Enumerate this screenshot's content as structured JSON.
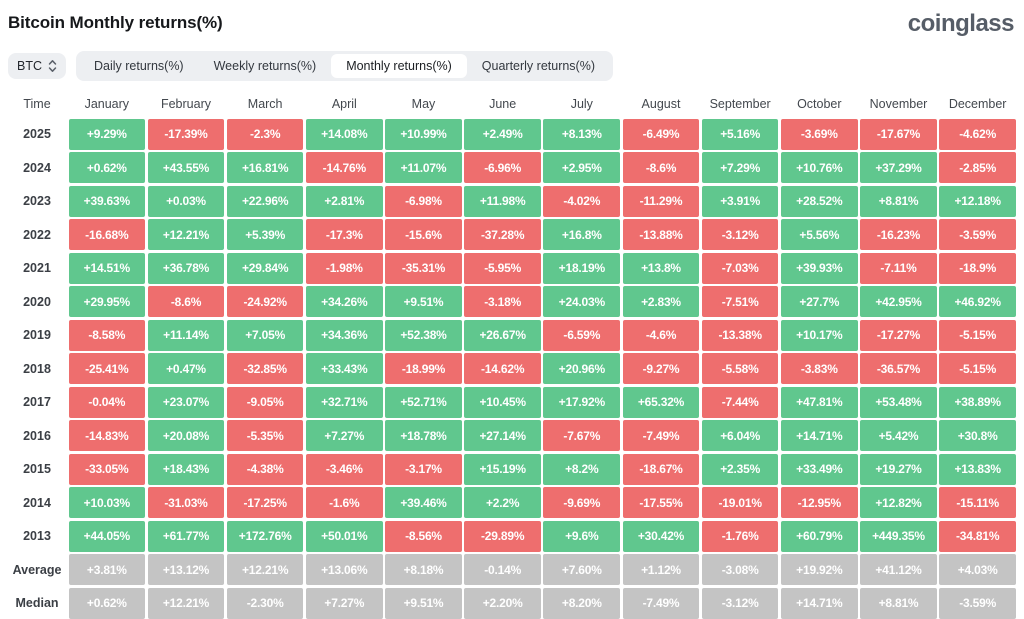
{
  "page": {
    "title": "Bitcoin Monthly returns(%)",
    "brand": "coinglass"
  },
  "toolbar": {
    "symbol_select": {
      "value": "BTC"
    },
    "tabs": [
      {
        "label": "Daily returns(%)",
        "active": false
      },
      {
        "label": "Weekly returns(%)",
        "active": false
      },
      {
        "label": "Monthly returns(%)",
        "active": true
      },
      {
        "label": "Quarterly returns(%)",
        "active": false
      }
    ]
  },
  "colors": {
    "positive": "#60C78E",
    "negative": "#EE6E6E",
    "neutral": "#C4C4C4"
  },
  "table": {
    "columns": [
      "Time",
      "January",
      "February",
      "March",
      "April",
      "May",
      "June",
      "July",
      "August",
      "September",
      "October",
      "November",
      "December"
    ],
    "rows": [
      {
        "label": "2025",
        "summary": false,
        "cells": [
          "+9.29%",
          "-17.39%",
          "-2.3%",
          "+14.08%",
          "+10.99%",
          "+2.49%",
          "+8.13%",
          "-6.49%",
          "+5.16%",
          "-3.69%",
          "-17.67%",
          "-4.62%"
        ]
      },
      {
        "label": "2024",
        "summary": false,
        "cells": [
          "+0.62%",
          "+43.55%",
          "+16.81%",
          "-14.76%",
          "+11.07%",
          "-6.96%",
          "+2.95%",
          "-8.6%",
          "+7.29%",
          "+10.76%",
          "+37.29%",
          "-2.85%"
        ]
      },
      {
        "label": "2023",
        "summary": false,
        "cells": [
          "+39.63%",
          "+0.03%",
          "+22.96%",
          "+2.81%",
          "-6.98%",
          "+11.98%",
          "-4.02%",
          "-11.29%",
          "+3.91%",
          "+28.52%",
          "+8.81%",
          "+12.18%"
        ]
      },
      {
        "label": "2022",
        "summary": false,
        "cells": [
          "-16.68%",
          "+12.21%",
          "+5.39%",
          "-17.3%",
          "-15.6%",
          "-37.28%",
          "+16.8%",
          "-13.88%",
          "-3.12%",
          "+5.56%",
          "-16.23%",
          "-3.59%"
        ]
      },
      {
        "label": "2021",
        "summary": false,
        "cells": [
          "+14.51%",
          "+36.78%",
          "+29.84%",
          "-1.98%",
          "-35.31%",
          "-5.95%",
          "+18.19%",
          "+13.8%",
          "-7.03%",
          "+39.93%",
          "-7.11%",
          "-18.9%"
        ]
      },
      {
        "label": "2020",
        "summary": false,
        "cells": [
          "+29.95%",
          "-8.6%",
          "-24.92%",
          "+34.26%",
          "+9.51%",
          "-3.18%",
          "+24.03%",
          "+2.83%",
          "-7.51%",
          "+27.7%",
          "+42.95%",
          "+46.92%"
        ]
      },
      {
        "label": "2019",
        "summary": false,
        "cells": [
          "-8.58%",
          "+11.14%",
          "+7.05%",
          "+34.36%",
          "+52.38%",
          "+26.67%",
          "-6.59%",
          "-4.6%",
          "-13.38%",
          "+10.17%",
          "-17.27%",
          "-5.15%"
        ]
      },
      {
        "label": "2018",
        "summary": false,
        "cells": [
          "-25.41%",
          "+0.47%",
          "-32.85%",
          "+33.43%",
          "-18.99%",
          "-14.62%",
          "+20.96%",
          "-9.27%",
          "-5.58%",
          "-3.83%",
          "-36.57%",
          "-5.15%"
        ]
      },
      {
        "label": "2017",
        "summary": false,
        "cells": [
          "-0.04%",
          "+23.07%",
          "-9.05%",
          "+32.71%",
          "+52.71%",
          "+10.45%",
          "+17.92%",
          "+65.32%",
          "-7.44%",
          "+47.81%",
          "+53.48%",
          "+38.89%"
        ]
      },
      {
        "label": "2016",
        "summary": false,
        "cells": [
          "-14.83%",
          "+20.08%",
          "-5.35%",
          "+7.27%",
          "+18.78%",
          "+27.14%",
          "-7.67%",
          "-7.49%",
          "+6.04%",
          "+14.71%",
          "+5.42%",
          "+30.8%"
        ]
      },
      {
        "label": "2015",
        "summary": false,
        "cells": [
          "-33.05%",
          "+18.43%",
          "-4.38%",
          "-3.46%",
          "-3.17%",
          "+15.19%",
          "+8.2%",
          "-18.67%",
          "+2.35%",
          "+33.49%",
          "+19.27%",
          "+13.83%"
        ]
      },
      {
        "label": "2014",
        "summary": false,
        "cells": [
          "+10.03%",
          "-31.03%",
          "-17.25%",
          "-1.6%",
          "+39.46%",
          "+2.2%",
          "-9.69%",
          "-17.55%",
          "-19.01%",
          "-12.95%",
          "+12.82%",
          "-15.11%"
        ]
      },
      {
        "label": "2013",
        "summary": false,
        "cells": [
          "+44.05%",
          "+61.77%",
          "+172.76%",
          "+50.01%",
          "-8.56%",
          "-29.89%",
          "+9.6%",
          "+30.42%",
          "-1.76%",
          "+60.79%",
          "+449.35%",
          "-34.81%"
        ]
      },
      {
        "label": "Average",
        "summary": true,
        "cells": [
          "+3.81%",
          "+13.12%",
          "+12.21%",
          "+13.06%",
          "+8.18%",
          "-0.14%",
          "+7.60%",
          "+1.12%",
          "-3.08%",
          "+19.92%",
          "+41.12%",
          "+4.03%"
        ]
      },
      {
        "label": "Median",
        "summary": true,
        "cells": [
          "+0.62%",
          "+12.21%",
          "-2.30%",
          "+7.27%",
          "+9.51%",
          "+2.20%",
          "+8.20%",
          "-7.49%",
          "-3.12%",
          "+14.71%",
          "+8.81%",
          "-3.59%"
        ]
      }
    ]
  },
  "chart_data": {
    "type": "heatmap",
    "title": "Bitcoin Monthly returns(%)",
    "unit": "%",
    "x_labels": [
      "January",
      "February",
      "March",
      "April",
      "May",
      "June",
      "July",
      "August",
      "September",
      "October",
      "November",
      "December"
    ],
    "y_labels": [
      "2025",
      "2024",
      "2023",
      "2022",
      "2021",
      "2020",
      "2019",
      "2018",
      "2017",
      "2016",
      "2015",
      "2014",
      "2013",
      "Average",
      "Median"
    ],
    "series": [
      {
        "name": "2025",
        "values": [
          9.29,
          -17.39,
          -2.3,
          14.08,
          10.99,
          2.49,
          8.13,
          -6.49,
          5.16,
          -3.69,
          -17.67,
          -4.62
        ]
      },
      {
        "name": "2024",
        "values": [
          0.62,
          43.55,
          16.81,
          -14.76,
          11.07,
          -6.96,
          2.95,
          -8.6,
          7.29,
          10.76,
          37.29,
          -2.85
        ]
      },
      {
        "name": "2023",
        "values": [
          39.63,
          0.03,
          22.96,
          2.81,
          -6.98,
          11.98,
          -4.02,
          -11.29,
          3.91,
          28.52,
          8.81,
          12.18
        ]
      },
      {
        "name": "2022",
        "values": [
          -16.68,
          12.21,
          5.39,
          -17.3,
          -15.6,
          -37.28,
          16.8,
          -13.88,
          -3.12,
          5.56,
          -16.23,
          -3.59
        ]
      },
      {
        "name": "2021",
        "values": [
          14.51,
          36.78,
          29.84,
          -1.98,
          -35.31,
          -5.95,
          18.19,
          13.8,
          -7.03,
          39.93,
          -7.11,
          -18.9
        ]
      },
      {
        "name": "2020",
        "values": [
          29.95,
          -8.6,
          -24.92,
          34.26,
          9.51,
          -3.18,
          24.03,
          2.83,
          -7.51,
          27.7,
          42.95,
          46.92
        ]
      },
      {
        "name": "2019",
        "values": [
          -8.58,
          11.14,
          7.05,
          34.36,
          52.38,
          26.67,
          -6.59,
          -4.6,
          -13.38,
          10.17,
          -17.27,
          -5.15
        ]
      },
      {
        "name": "2018",
        "values": [
          -25.41,
          0.47,
          -32.85,
          33.43,
          -18.99,
          -14.62,
          20.96,
          -9.27,
          -5.58,
          -3.83,
          -36.57,
          -5.15
        ]
      },
      {
        "name": "2017",
        "values": [
          -0.04,
          23.07,
          -9.05,
          32.71,
          52.71,
          10.45,
          17.92,
          65.32,
          -7.44,
          47.81,
          53.48,
          38.89
        ]
      },
      {
        "name": "2016",
        "values": [
          -14.83,
          20.08,
          -5.35,
          7.27,
          18.78,
          27.14,
          -7.67,
          -7.49,
          6.04,
          14.71,
          5.42,
          30.8
        ]
      },
      {
        "name": "2015",
        "values": [
          -33.05,
          18.43,
          -4.38,
          -3.46,
          -3.17,
          15.19,
          8.2,
          -18.67,
          2.35,
          33.49,
          19.27,
          13.83
        ]
      },
      {
        "name": "2014",
        "values": [
          10.03,
          -31.03,
          -17.25,
          -1.6,
          39.46,
          2.2,
          -9.69,
          -17.55,
          -19.01,
          -12.95,
          12.82,
          -15.11
        ]
      },
      {
        "name": "2013",
        "values": [
          44.05,
          61.77,
          172.76,
          50.01,
          -8.56,
          -29.89,
          9.6,
          30.42,
          -1.76,
          60.79,
          449.35,
          -34.81
        ]
      },
      {
        "name": "Average",
        "values": [
          3.81,
          13.12,
          12.21,
          13.06,
          8.18,
          -0.14,
          7.6,
          1.12,
          -3.08,
          19.92,
          41.12,
          4.03
        ]
      },
      {
        "name": "Median",
        "values": [
          0.62,
          12.21,
          -2.3,
          7.27,
          9.51,
          2.2,
          8.2,
          -7.49,
          -3.12,
          14.71,
          8.81,
          -3.59
        ]
      }
    ],
    "legend": "none",
    "color_rule": {
      "positive_cells": "green",
      "negative_cells": "red",
      "summary_rows_Average_Median": "gray"
    }
  }
}
